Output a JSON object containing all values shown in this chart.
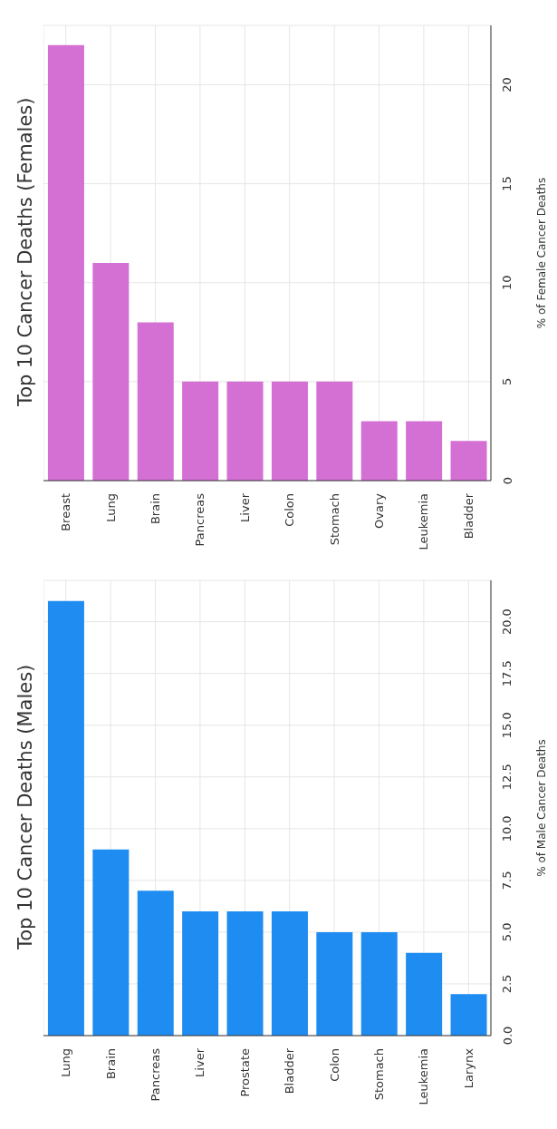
{
  "chart_data": [
    {
      "type": "bar",
      "title": "Top 10 Cancer Deaths (Females)",
      "ylabel": "% of Female Cancer Deaths",
      "categories": [
        "Breast",
        "Lung",
        "Brain",
        "Pancreas",
        "Liver",
        "Colon",
        "Stomach",
        "Ovary",
        "Leukemia",
        "Bladder"
      ],
      "values": [
        22,
        11,
        8,
        5,
        5,
        5,
        5,
        3,
        3,
        2
      ],
      "color": "#d46fd4",
      "ylim": [
        0,
        23
      ],
      "yticks": [
        0,
        5,
        10,
        15,
        20
      ],
      "grid": true
    },
    {
      "type": "bar",
      "title": "Top 10 Cancer Deaths (Males)",
      "ylabel": "% of Male Cancer Deaths",
      "categories": [
        "Lung",
        "Brain",
        "Pancreas",
        "Liver",
        "Prostate",
        "Bladder",
        "Colon",
        "Stomach",
        "Leukemia",
        "Larynx"
      ],
      "values": [
        21,
        9,
        7,
        6,
        6,
        6,
        5,
        5,
        4,
        2
      ],
      "color": "#1e8cf0",
      "ylim": [
        0,
        22
      ],
      "yticks": [
        {
          "value": 0,
          "label": "0.0"
        },
        {
          "value": 2.5,
          "label": "2.5"
        },
        {
          "value": 5,
          "label": "5.0"
        },
        {
          "value": 7.5,
          "label": "7.5"
        },
        {
          "value": 10,
          "label": "10.0"
        },
        {
          "value": 12.5,
          "label": "12.5"
        },
        {
          "value": 15,
          "label": "15.0"
        },
        {
          "value": 17.5,
          "label": "17.5"
        },
        {
          "value": 20,
          "label": "20.0"
        }
      ],
      "grid": true
    }
  ]
}
